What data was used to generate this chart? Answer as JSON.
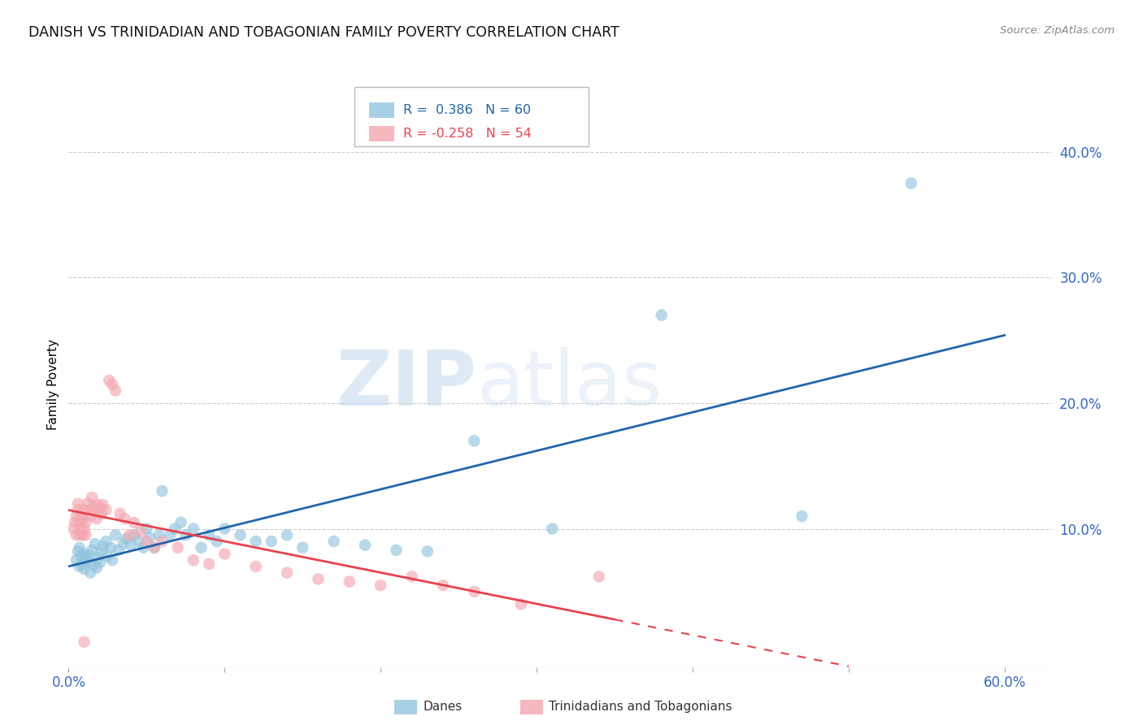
{
  "title": "DANISH VS TRINIDADIAN AND TOBAGONIAN FAMILY POVERTY CORRELATION CHART",
  "source": "Source: ZipAtlas.com",
  "ylabel": "Family Poverty",
  "xlim": [
    0.0,
    0.63
  ],
  "ylim": [
    -0.01,
    0.44
  ],
  "blue_color": "#92c5de",
  "pink_color": "#f4a7b0",
  "blue_line_color": "#2166ac",
  "pink_line_color": "#e8434f",
  "legend_blue_r_val": "0.386",
  "legend_blue_n_val": "60",
  "legend_pink_r_val": "-0.258",
  "legend_pink_n_val": "54",
  "legend_label_blue": "Danes",
  "legend_label_pink": "Trinidadians and Tobagonians",
  "watermark_zip": "ZIP",
  "watermark_atlas": "atlas",
  "title_fontsize": 12.5,
  "blue_dots_x": [
    0.005,
    0.006,
    0.007,
    0.007,
    0.008,
    0.009,
    0.01,
    0.01,
    0.011,
    0.012,
    0.013,
    0.014,
    0.015,
    0.016,
    0.017,
    0.018,
    0.019,
    0.02,
    0.021,
    0.022,
    0.024,
    0.025,
    0.027,
    0.028,
    0.03,
    0.032,
    0.035,
    0.037,
    0.04,
    0.042,
    0.045,
    0.048,
    0.05,
    0.052,
    0.055,
    0.058,
    0.06,
    0.065,
    0.068,
    0.072,
    0.075,
    0.08,
    0.085,
    0.09,
    0.095,
    0.1,
    0.11,
    0.12,
    0.13,
    0.14,
    0.15,
    0.17,
    0.19,
    0.21,
    0.23,
    0.26,
    0.31,
    0.38,
    0.47,
    0.54
  ],
  "blue_dots_y": [
    0.075,
    0.082,
    0.07,
    0.085,
    0.078,
    0.072,
    0.068,
    0.08,
    0.076,
    0.074,
    0.079,
    0.065,
    0.083,
    0.071,
    0.088,
    0.069,
    0.077,
    0.073,
    0.081,
    0.086,
    0.09,
    0.078,
    0.085,
    0.075,
    0.095,
    0.083,
    0.088,
    0.092,
    0.087,
    0.095,
    0.09,
    0.085,
    0.1,
    0.093,
    0.085,
    0.095,
    0.13,
    0.095,
    0.1,
    0.105,
    0.095,
    0.1,
    0.085,
    0.095,
    0.09,
    0.1,
    0.095,
    0.09,
    0.09,
    0.095,
    0.085,
    0.09,
    0.087,
    0.083,
    0.082,
    0.17,
    0.1,
    0.27,
    0.11,
    0.375
  ],
  "pink_dots_x": [
    0.003,
    0.004,
    0.005,
    0.005,
    0.006,
    0.006,
    0.007,
    0.007,
    0.008,
    0.008,
    0.009,
    0.009,
    0.01,
    0.01,
    0.011,
    0.011,
    0.012,
    0.013,
    0.014,
    0.015,
    0.016,
    0.017,
    0.018,
    0.019,
    0.02,
    0.021,
    0.022,
    0.024,
    0.026,
    0.028,
    0.03,
    0.033,
    0.036,
    0.039,
    0.042,
    0.046,
    0.05,
    0.055,
    0.06,
    0.07,
    0.08,
    0.09,
    0.1,
    0.12,
    0.14,
    0.16,
    0.18,
    0.2,
    0.22,
    0.24,
    0.26,
    0.29,
    0.01,
    0.34
  ],
  "pink_dots_y": [
    0.1,
    0.105,
    0.095,
    0.11,
    0.115,
    0.12,
    0.095,
    0.105,
    0.1,
    0.11,
    0.095,
    0.108,
    0.1,
    0.115,
    0.095,
    0.105,
    0.12,
    0.115,
    0.11,
    0.125,
    0.118,
    0.113,
    0.108,
    0.119,
    0.116,
    0.112,
    0.119,
    0.115,
    0.218,
    0.215,
    0.21,
    0.112,
    0.108,
    0.095,
    0.105,
    0.098,
    0.09,
    0.085,
    0.09,
    0.085,
    0.075,
    0.072,
    0.08,
    0.07,
    0.065,
    0.06,
    0.058,
    0.055,
    0.062,
    0.055,
    0.05,
    0.04,
    0.01,
    0.062
  ]
}
